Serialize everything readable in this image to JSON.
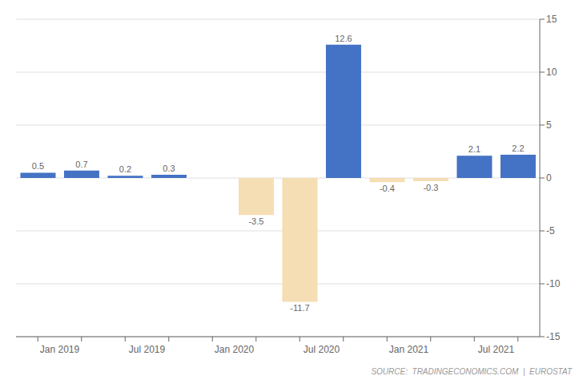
{
  "chart_data": {
    "type": "bar",
    "categories": [
      "Jan 2019",
      null,
      "Jul 2019",
      null,
      "Jan 2020",
      null,
      "Jul 2020",
      null,
      "Jan 2021",
      null,
      "Jul 2021",
      null
    ],
    "values": [
      0.5,
      0.7,
      0.2,
      0.3,
      0.0,
      -3.5,
      -11.7,
      12.6,
      -0.4,
      -0.3,
      2.1,
      2.2
    ],
    "colors": [
      "#4472C4",
      "#4472C4",
      "#4472C4",
      "#4472C4",
      "#4472C4",
      "#F5DEB3",
      "#F5DEB3",
      "#4472C4",
      "#F5DEB3",
      "#F5DEB3",
      "#4472C4",
      "#4472C4"
    ],
    "ylim": [
      -15,
      15
    ],
    "yticks": [
      -15,
      -10,
      -5,
      0,
      5,
      10,
      15
    ],
    "grid": true,
    "data_labels": true,
    "annotations": [
      "SOURCE:  TRADINGECONOMICS.COM  |  EUROSTAT"
    ]
  }
}
